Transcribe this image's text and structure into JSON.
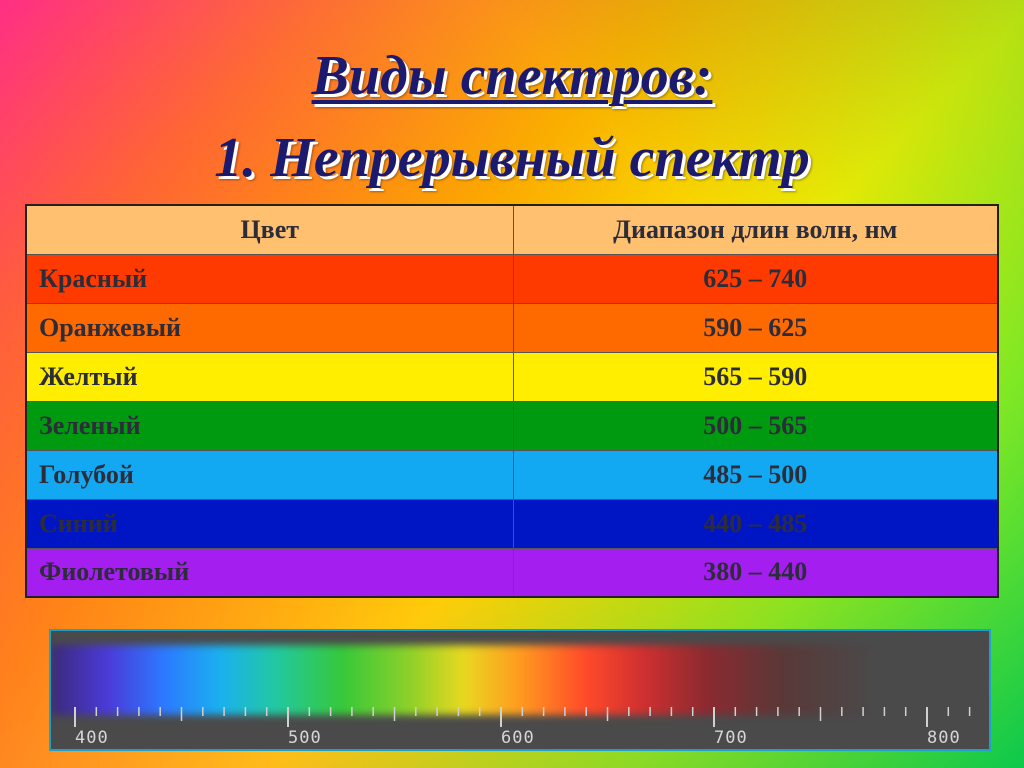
{
  "title_line1": "Виды спектров:",
  "title_line2": "1. Непрерывный спектр",
  "table": {
    "headers": [
      "Цвет",
      "Диапазон длин волн, нм"
    ],
    "rows": [
      {
        "name": "Красный",
        "range": "625 – 740",
        "color": "#ff3a00"
      },
      {
        "name": "Оранжевый",
        "range": "590 – 625",
        "color": "#ff6a00"
      },
      {
        "name": "Желтый",
        "range": "565 – 590",
        "color": "#ffee00"
      },
      {
        "name": "Зеленый",
        "range": "500 – 565",
        "color": "#009a10"
      },
      {
        "name": "Голубой",
        "range": "485 – 500",
        "color": "#12a8f2"
      },
      {
        "name": "Синий",
        "range": "440 – 485",
        "color": "#0016c4"
      },
      {
        "name": "Фиолетовый",
        "range": "380 – 440",
        "color": "#a51ef0"
      }
    ]
  },
  "spectrum_scale": {
    "labels": [
      "400",
      "500",
      "600",
      "700",
      "800"
    ]
  }
}
